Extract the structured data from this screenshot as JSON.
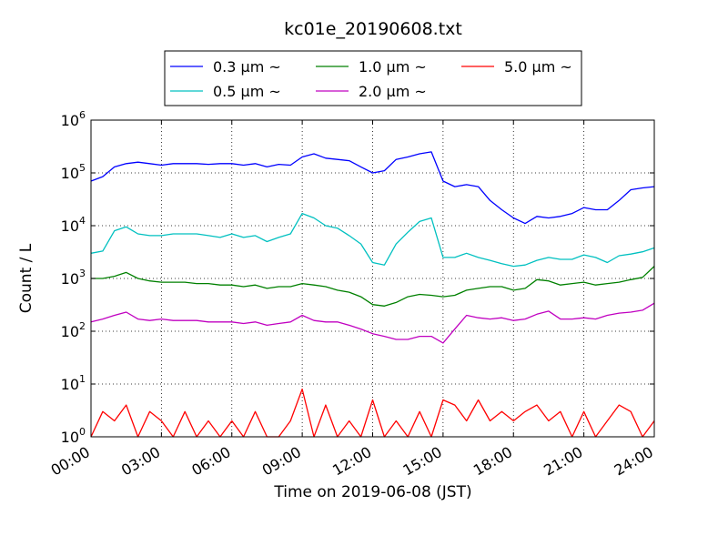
{
  "chart_data": {
    "type": "line",
    "title": "kc01e_20190608.txt",
    "xlabel": "Time on 2019-06-08 (JST)",
    "ylabel": "Count / L",
    "yscale": "log",
    "ylim": [
      1,
      1000000
    ],
    "xlim": [
      0,
      24
    ],
    "grid": true,
    "legend_position": "top-center",
    "x_tick_labels": [
      "00:00",
      "03:00",
      "06:00",
      "09:00",
      "12:00",
      "15:00",
      "18:00",
      "21:00",
      "24:00"
    ],
    "y_tick_labels": [
      {
        "base": "10",
        "exp": "0"
      },
      {
        "base": "10",
        "exp": "1"
      },
      {
        "base": "10",
        "exp": "2"
      },
      {
        "base": "10",
        "exp": "3"
      },
      {
        "base": "10",
        "exp": "4"
      },
      {
        "base": "10",
        "exp": "5"
      },
      {
        "base": "10",
        "exp": "6"
      }
    ],
    "x": [
      0,
      0.5,
      1,
      1.5,
      2,
      2.5,
      3,
      3.5,
      4,
      4.5,
      5,
      5.5,
      6,
      6.5,
      7,
      7.5,
      8,
      8.5,
      9,
      9.5,
      10,
      10.5,
      11,
      11.5,
      12,
      12.5,
      13,
      13.5,
      14,
      14.5,
      15,
      15.5,
      16,
      16.5,
      17,
      17.5,
      18,
      18.5,
      19,
      19.5,
      20,
      20.5,
      21,
      21.5,
      22,
      22.5,
      23,
      23.5,
      24
    ],
    "series": [
      {
        "name": "0.3 μm ~",
        "color": "#0000ff",
        "values": [
          70000,
          85000,
          130000,
          150000,
          160000,
          150000,
          140000,
          150000,
          150000,
          150000,
          145000,
          150000,
          150000,
          140000,
          150000,
          130000,
          145000,
          140000,
          200000,
          230000,
          190000,
          180000,
          170000,
          130000,
          100000,
          110000,
          180000,
          200000,
          230000,
          250000,
          70000,
          55000,
          60000,
          55000,
          30000,
          20000,
          14000,
          11000,
          15000,
          14000,
          15000,
          17000,
          22000,
          20000,
          20000,
          30000,
          48000,
          52000,
          55000
        ]
      },
      {
        "name": "0.5 μm ~",
        "color": "#00c0c0",
        "values": [
          3000,
          3300,
          8000,
          9500,
          7000,
          6500,
          6500,
          7000,
          7000,
          7000,
          6500,
          6000,
          7000,
          6000,
          6500,
          5000,
          6000,
          7000,
          17000,
          14000,
          10000,
          9000,
          6500,
          4500,
          2000,
          1800,
          4500,
          7500,
          12000,
          14000,
          2500,
          2500,
          3000,
          2500,
          2200,
          1900,
          1700,
          1800,
          2200,
          2500,
          2300,
          2300,
          2800,
          2500,
          2000,
          2700,
          2900,
          3200,
          3800
        ]
      },
      {
        "name": "1.0 μm ~",
        "color": "#008000",
        "values": [
          1000,
          1000,
          1100,
          1300,
          1000,
          900,
          850,
          850,
          850,
          800,
          800,
          750,
          750,
          700,
          750,
          650,
          700,
          700,
          800,
          750,
          700,
          600,
          550,
          450,
          320,
          300,
          350,
          450,
          500,
          480,
          450,
          480,
          600,
          650,
          700,
          700,
          600,
          650,
          950,
          900,
          750,
          800,
          850,
          750,
          800,
          850,
          950,
          1050,
          1700
        ]
      },
      {
        "name": "2.0 μm ~",
        "color": "#c000c0",
        "values": [
          150,
          170,
          200,
          230,
          170,
          160,
          170,
          160,
          160,
          160,
          150,
          150,
          150,
          140,
          150,
          130,
          140,
          150,
          200,
          160,
          150,
          150,
          130,
          110,
          90,
          80,
          70,
          70,
          80,
          80,
          60,
          110,
          200,
          180,
          170,
          180,
          160,
          170,
          210,
          240,
          170,
          170,
          180,
          170,
          200,
          220,
          230,
          250,
          340
        ]
      },
      {
        "name": "5.0 μm ~",
        "color": "#ff0000",
        "values": [
          1,
          3,
          2,
          4,
          1,
          3,
          2,
          1,
          3,
          1,
          2,
          1,
          2,
          1,
          3,
          1,
          1,
          2,
          8,
          1,
          4,
          1,
          2,
          1,
          5,
          1,
          2,
          1,
          3,
          1,
          5,
          4,
          2,
          5,
          2,
          3,
          2,
          3,
          4,
          2,
          3,
          1,
          3,
          1,
          2,
          4,
          3,
          1,
          2
        ]
      }
    ]
  }
}
